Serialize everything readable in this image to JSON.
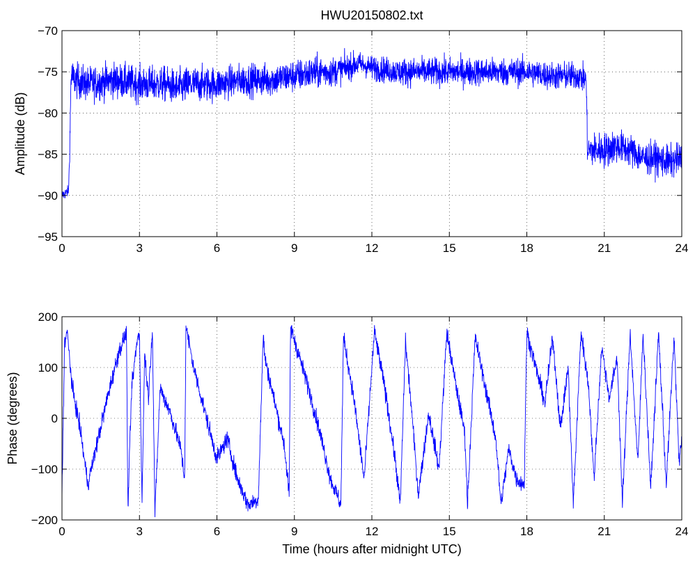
{
  "title": "HWU20150802.txt",
  "chart_data": [
    {
      "type": "line",
      "ylabel": "Amplitude (dB)",
      "xlabel": "",
      "xlim": [
        0,
        24
      ],
      "ylim": [
        -95,
        -70
      ],
      "xticks": [
        0,
        3,
        6,
        9,
        12,
        15,
        18,
        21,
        24
      ],
      "yticks": [
        -95,
        -90,
        -85,
        -80,
        -75,
        -70
      ],
      "grid": true,
      "color": "#0000ff",
      "series": [
        {
          "x": [
            0,
            0.25,
            0.3,
            0.35,
            0.5,
            1,
            2,
            3,
            4,
            4.5,
            5,
            6,
            7,
            8,
            9,
            10,
            10.5,
            11,
            11.5,
            12,
            13,
            14,
            15,
            16,
            17,
            18,
            19,
            20,
            20.3,
            20.35,
            20.5,
            21,
            21.5,
            22,
            22.5,
            23,
            23.5,
            24
          ],
          "y": [
            -90,
            -89.5,
            -85,
            -75.5,
            -76,
            -76.5,
            -76,
            -76.5,
            -76.5,
            -77,
            -76.5,
            -76.5,
            -76,
            -76,
            -75.5,
            -75,
            -75,
            -74.5,
            -74,
            -74.5,
            -75,
            -75,
            -75,
            -75,
            -75,
            -75,
            -75.5,
            -75.5,
            -76,
            -84.5,
            -84.5,
            -84.5,
            -84,
            -84.5,
            -85.5,
            -85.5,
            -86,
            -85.5
          ],
          "noise": [
            0.5,
            0.5,
            2,
            1.5,
            1.5,
            1.5,
            1.5,
            1.5,
            1.5,
            1.6,
            1.5,
            1.4,
            1.4,
            1.4,
            1.4,
            1.3,
            1.2,
            1.1,
            1.0,
            1.1,
            1.2,
            1.2,
            1.2,
            1.2,
            1.2,
            1.2,
            1.2,
            1.2,
            1.2,
            1.5,
            1.5,
            1.5,
            1.4,
            1.4,
            1.4,
            1.4,
            1.4,
            1.4
          ]
        }
      ]
    },
    {
      "type": "line",
      "ylabel": "Phase (degrees)",
      "xlabel": "Time (hours after midnight UTC)",
      "xlim": [
        0,
        24
      ],
      "ylim": [
        -200,
        200
      ],
      "xticks": [
        0,
        3,
        6,
        9,
        12,
        15,
        18,
        21,
        24
      ],
      "yticks": [
        -200,
        -100,
        0,
        100,
        200
      ],
      "grid": true,
      "color": "#0000ff",
      "series": [
        {
          "x": [
            0,
            0.1,
            0.2,
            0.4,
            0.7,
            1.0,
            1.4,
            1.8,
            2.2,
            2.5,
            2.55,
            2.7,
            2.9,
            3.0,
            3.1,
            3.2,
            3.35,
            3.5,
            3.6,
            3.8,
            4.2,
            4.6,
            4.75,
            4.8,
            5.1,
            5.5,
            6.0,
            6.4,
            6.8,
            7.2,
            7.6,
            7.8,
            7.85,
            8.2,
            8.6,
            8.8,
            8.85,
            9.2,
            9.6,
            10.0,
            10.4,
            10.8,
            10.9,
            11.3,
            11.7,
            12.0,
            12.1,
            12.5,
            12.9,
            13.1,
            13.3,
            13.5,
            13.8,
            14.2,
            14.6,
            14.9,
            15.2,
            15.6,
            15.7,
            16.0,
            16.4,
            16.8,
            17.0,
            17.3,
            17.6,
            17.9,
            18.0,
            18.3,
            18.7,
            19.0,
            19.3,
            19.6,
            19.8,
            20.1,
            20.4,
            20.6,
            20.9,
            21.2,
            21.5,
            21.7,
            22.0,
            22.3,
            22.5,
            22.8,
            23.1,
            23.4,
            23.7,
            23.9,
            24.0
          ],
          "y": [
            -150,
            150,
            170,
            60,
            -20,
            -130,
            -40,
            50,
            130,
            170,
            -180,
            60,
            150,
            170,
            -170,
            130,
            40,
            180,
            -190,
            60,
            10,
            -60,
            -120,
            180,
            100,
            20,
            -80,
            -40,
            -120,
            -170,
            -160,
            170,
            120,
            40,
            -50,
            -150,
            180,
            120,
            50,
            -30,
            -120,
            -170,
            160,
            40,
            -120,
            100,
            170,
            60,
            -80,
            -170,
            150,
            40,
            -150,
            10,
            -100,
            170,
            80,
            -30,
            -170,
            160,
            60,
            -40,
            -170,
            -60,
            -120,
            -130,
            170,
            110,
            30,
            160,
            -20,
            100,
            -170,
            170,
            60,
            -120,
            140,
            40,
            120,
            -170,
            170,
            -90,
            170,
            -140,
            170,
            -130,
            160,
            -90,
            -40
          ],
          "noise": 12
        }
      ]
    }
  ]
}
